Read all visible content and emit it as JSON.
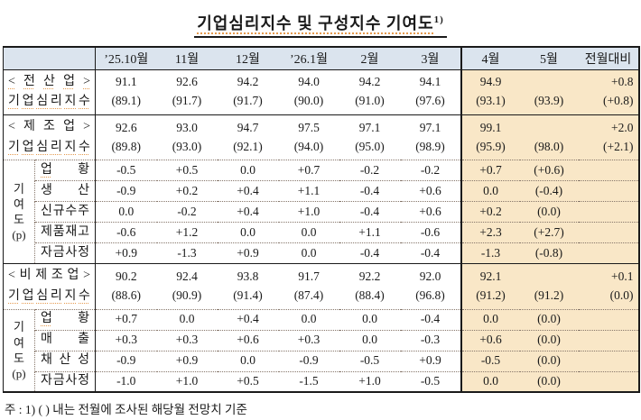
{
  "title": {
    "text": "기업심리지수 및 구성지수 기여도",
    "sup": "1)"
  },
  "colors": {
    "header_bg": "#dbe4ee",
    "highlight_bg": "#f9e7c7",
    "proof_mark": "#e59a4f"
  },
  "table": {
    "columns": [
      "’25.10월",
      "11월",
      "12월",
      "’26.1월",
      "2월",
      "3월",
      "4월",
      "5월",
      "전월대비"
    ]
  },
  "rows": {
    "kyodo": "기\n여\n도\n(p)",
    "all": {
      "label1": "< 전 산 업 >",
      "label2": "기업심리지수",
      "months": [
        "91.1\n(89.1)",
        "92.6\n(91.7)",
        "94.2\n(91.7)",
        "94.0\n(90.0)",
        "94.2\n(91.0)",
        "94.1\n(97.6)"
      ],
      "apr": "94.9\n(93.1)",
      "may": "\n(93.9)",
      "mom": "+0.8\n(+0.8)"
    },
    "mfg": {
      "label1": "< 제 조 업 >",
      "label2": "기업심리지수",
      "months": [
        "92.6\n(89.8)",
        "93.0\n(93.0)",
        "94.7\n(92.1)",
        "97.5\n(94.0)",
        "97.1\n(95.0)",
        "97.1\n(98.9)"
      ],
      "apr": "99.1\n(95.9)",
      "may": "\n(98.0)",
      "mom": "+2.0\n(+2.1)"
    },
    "mfg_c": [
      {
        "label": "업황",
        "months": [
          "-0.5",
          "+0.5",
          "0.0",
          "+0.7",
          "-0.2",
          "-0.2"
        ],
        "apr": "+0.7",
        "may": "(+0.6)",
        "mom": ""
      },
      {
        "label": "생산",
        "months": [
          "-0.9",
          "+0.2",
          "+0.4",
          "+1.1",
          "-0.4",
          "+0.6"
        ],
        "apr": "0.0",
        "may": "(-0.4)",
        "mom": ""
      },
      {
        "label": "신규수주",
        "months": [
          "0.0",
          "-0.2",
          "+0.4",
          "+1.0",
          "-0.4",
          "+0.6"
        ],
        "apr": "+0.2",
        "may": "(0.0)",
        "mom": ""
      },
      {
        "label": "제품재고",
        "months": [
          "-0.6",
          "+1.2",
          "0.0",
          "0.0",
          "+1.1",
          "-0.6"
        ],
        "apr": "+2.3",
        "may": "(+2.7)",
        "mom": ""
      },
      {
        "label": "자금사정",
        "months": [
          "+0.9",
          "-1.3",
          "+0.9",
          "0.0",
          "-0.4",
          "-0.4"
        ],
        "apr": "-1.3",
        "may": "(-0.8)",
        "mom": ""
      }
    ],
    "nonmfg": {
      "label1": "< 비 제 조 업 >",
      "label2": "기업심리지수",
      "months": [
        "90.2\n(88.6)",
        "92.4\n(90.9)",
        "93.8\n(91.4)",
        "91.7\n(87.4)",
        "92.2\n(88.4)",
        "92.0\n(96.8)"
      ],
      "apr": "92.1\n(91.2)",
      "may": "\n(91.2)",
      "mom": "+0.1\n(0.0)"
    },
    "nonmfg_c": [
      {
        "label": "업황",
        "months": [
          "+0.7",
          "0.0",
          "+0.4",
          "0.0",
          "0.0",
          "-0.4"
        ],
        "apr": "0.0",
        "may": "(0.0)",
        "mom": ""
      },
      {
        "label": "매출",
        "months": [
          "+0.3",
          "+0.3",
          "+0.6",
          "+0.3",
          "0.0",
          "-0.3"
        ],
        "apr": "+0.6",
        "may": "(0.0)",
        "mom": ""
      },
      {
        "label": "채산성",
        "months": [
          "-0.9",
          "+0.9",
          "0.0",
          "-0.9",
          "-0.5",
          "+0.9"
        ],
        "apr": "-0.5",
        "may": "(0.0)",
        "mom": ""
      },
      {
        "label": "자금사정",
        "months": [
          "-1.0",
          "+1.0",
          "+0.5",
          "-1.5",
          "+1.0",
          "-0.5"
        ],
        "apr": "0.0",
        "may": "(0.0)",
        "mom": ""
      }
    ]
  },
  "footnote": "주 : 1) (   ) 내는 전월에 조사된 해당월 전망치 기준"
}
